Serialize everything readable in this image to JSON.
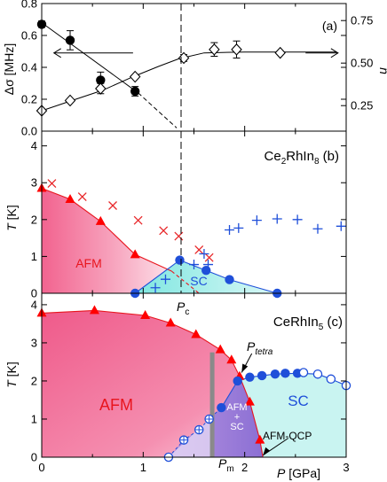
{
  "chart_data": [
    {
      "type": "scatter",
      "panel_label": "(a)",
      "ylabel": "Δσ [MHz]",
      "ylabel_right": "n",
      "xlim": [
        0,
        3
      ],
      "ylim": [
        0.0,
        0.8
      ],
      "ylim_right": [
        0.1,
        0.85
      ],
      "yticks": [
        "0.0",
        "0.2",
        "0.4",
        "0.6",
        "0.8"
      ],
      "yticks_right": [
        "0.25",
        "0.50",
        "0.75"
      ],
      "series": [
        {
          "axis": "left",
          "marker": "filled-circle",
          "color": "#000000",
          "x": [
            0.0,
            0.28,
            0.58,
            0.92
          ],
          "y": [
            0.67,
            0.57,
            0.32,
            0.25
          ],
          "err": [
            0.02,
            0.06,
            0.05,
            0.03
          ]
        },
        {
          "axis": "right",
          "marker": "open-diamond",
          "color": "#000000",
          "x": [
            0.0,
            0.28,
            0.58,
            0.92,
            1.4,
            1.7,
            1.92,
            2.35
          ],
          "y": [
            0.22,
            0.28,
            0.35,
            0.42,
            0.53,
            0.58,
            0.58,
            0.56
          ],
          "err": [
            0,
            0,
            0.03,
            0,
            0.02,
            0.04,
            0.05,
            0
          ]
        }
      ],
      "fit_line_filled": [
        [
          0.0,
          0.68
        ],
        [
          0.95,
          0.24
        ]
      ],
      "fit_dashed_filled": [
        [
          0.95,
          0.24
        ],
        [
          1.33,
          0.02
        ]
      ],
      "fit_curve_open": [
        [
          0.0,
          0.22
        ],
        [
          0.3,
          0.28
        ],
        [
          0.6,
          0.34
        ],
        [
          0.9,
          0.42
        ],
        [
          1.15,
          0.48
        ],
        [
          1.35,
          0.525
        ],
        [
          1.6,
          0.56
        ],
        [
          2.0,
          0.565
        ],
        [
          2.5,
          0.565
        ],
        [
          2.9,
          0.565
        ]
      ],
      "arrow_left_at": [
        0.9,
        0.49
      ],
      "arrow_right_at": [
        2.6,
        0.49
      ]
    },
    {
      "type": "scatter",
      "panel_label": "Ce2RhIn8 (b)",
      "ylabel": "T [K]",
      "xlim": [
        0,
        3
      ],
      "ylim": [
        0,
        4.4
      ],
      "yticks": [
        "0",
        "1",
        "2",
        "3",
        "4"
      ],
      "region_labels": [
        "AFM",
        "SC"
      ],
      "series": [
        {
          "name": "AFM",
          "marker": "filled-triangle",
          "color": "#ff0000",
          "x": [
            0.0,
            0.28,
            0.58,
            0.92
          ],
          "y": [
            2.85,
            2.55,
            1.95,
            1.05
          ]
        },
        {
          "marker": "cross",
          "color": "#e8272a",
          "x": [
            0.1,
            0.4,
            0.7,
            0.95,
            1.2,
            1.35,
            1.55,
            1.65
          ],
          "y": [
            2.98,
            2.62,
            2.38,
            1.98,
            1.7,
            1.55,
            1.18,
            0.97
          ]
        },
        {
          "name": "SC",
          "marker": "filled-circle",
          "color": "#1f4fd9",
          "x": [
            0.92,
            1.36,
            1.62,
            1.85,
            2.32
          ],
          "y": [
            0.0,
            0.9,
            0.62,
            0.37,
            0.0
          ]
        },
        {
          "marker": "plus",
          "color": "#1f4fd9",
          "x": [
            1.12,
            1.22,
            1.5,
            1.6,
            1.64,
            1.85,
            1.94,
            2.12,
            2.32,
            2.52,
            2.72,
            2.95
          ],
          "y": [
            0.15,
            0.38,
            0.78,
            1.07,
            0.78,
            1.72,
            1.77,
            1.98,
            2.02,
            2.0,
            1.75,
            1.82
          ]
        }
      ]
    },
    {
      "type": "scatter",
      "panel_label": "CeRhIn5 (c)",
      "ylabel": "T [K]",
      "xlabel": "P [GPa]",
      "xlim": [
        0,
        3
      ],
      "ylim": [
        0,
        4.3
      ],
      "xticks": [
        "0",
        "1",
        "2",
        "3"
      ],
      "yticks": [
        "0",
        "1",
        "2",
        "3",
        "4"
      ],
      "region_labels": [
        "AFM",
        "SC",
        "AFM + SC",
        "AFM-QCP"
      ],
      "annotations": [
        "Pc",
        "Ptetra",
        "Pm"
      ],
      "series": [
        {
          "name": "AFM",
          "marker": "filled-triangle",
          "color": "#ff0000",
          "x": [
            0.0,
            0.52,
            1.02,
            1.27,
            1.52,
            1.76,
            1.87,
            1.95,
            2.05,
            2.15
          ],
          "y": [
            3.78,
            3.85,
            3.72,
            3.52,
            3.22,
            2.82,
            2.55,
            2.12,
            1.45,
            0.45
          ]
        },
        {
          "name": "SC",
          "marker": "filled-circle",
          "color": "#1f4fd9",
          "x": [
            1.77,
            1.93,
            2.05,
            2.17,
            2.3,
            2.4,
            2.52
          ],
          "y": [
            1.3,
            2.0,
            2.1,
            2.14,
            2.18,
            2.2,
            2.2
          ]
        },
        {
          "marker": "open-circle",
          "color": "#1f4fd9",
          "x": [
            1.25,
            1.4,
            1.55,
            1.65,
            2.58,
            2.72,
            2.85,
            3.0
          ],
          "y": [
            0.0,
            0.45,
            0.72,
            1.0,
            2.22,
            2.18,
            2.05,
            1.88
          ]
        }
      ]
    }
  ]
}
